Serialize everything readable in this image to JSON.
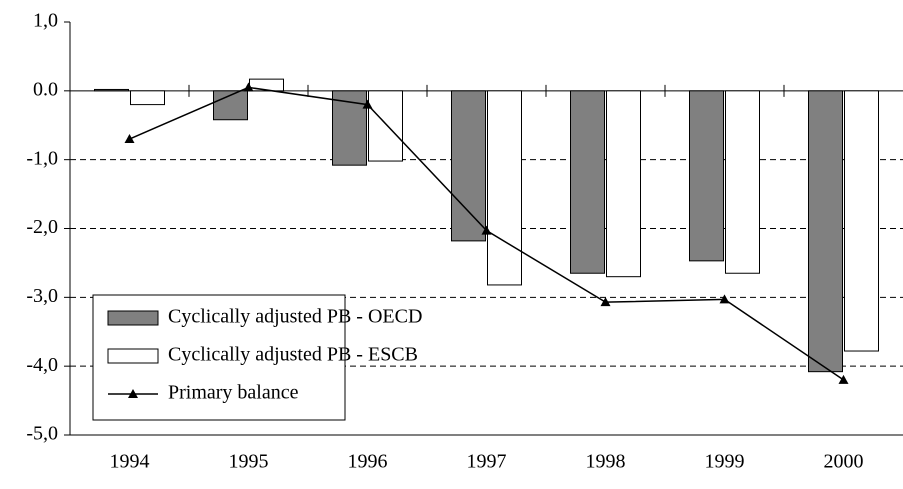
{
  "chart_data": {
    "type": "bar",
    "categories": [
      "1994",
      "1995",
      "1996",
      "1997",
      "1998",
      "1999",
      "2000"
    ],
    "series": [
      {
        "name": "Cyclically adjusted PB - OECD",
        "color": "#808080",
        "values": [
          0.02,
          -0.42,
          -1.08,
          -2.18,
          -2.65,
          -2.47,
          -4.08
        ]
      },
      {
        "name": "Cyclically adjusted PB - ESCB",
        "color": "#ffffff",
        "values": [
          -0.2,
          0.17,
          -1.02,
          -2.82,
          -2.7,
          -2.65,
          -3.78
        ]
      },
      {
        "name": "Primary balance",
        "color": "#000000",
        "type": "line",
        "values": [
          -0.7,
          0.05,
          -0.2,
          -2.03,
          -3.07,
          -3.03,
          -4.2
        ]
      }
    ],
    "ylim": [
      -5,
      1
    ],
    "yticks": [
      {
        "value": -5,
        "label": "-5,0"
      },
      {
        "value": -4,
        "label": "-4,0"
      },
      {
        "value": -3,
        "label": "-3,0"
      },
      {
        "value": -2,
        "label": "-2,0"
      },
      {
        "value": -1,
        "label": "-1,0"
      },
      {
        "value": 0,
        "label": "0.0"
      },
      {
        "value": 1,
        "label": "1,0"
      }
    ],
    "grid": true,
    "legend": "bottom-left"
  }
}
